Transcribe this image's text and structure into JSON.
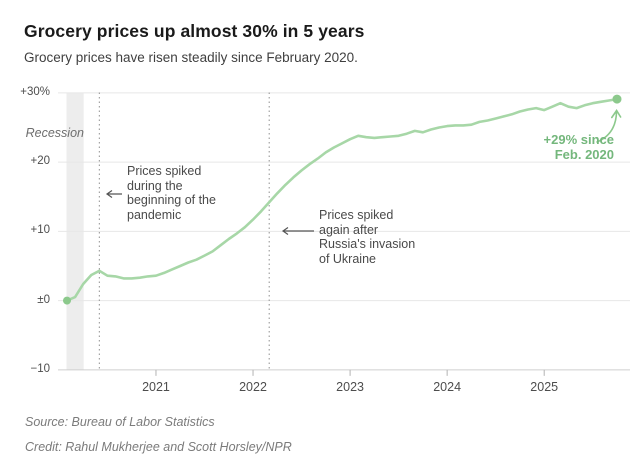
{
  "header": {
    "title": "Grocery prices up almost 30% in 5 years",
    "subtitle": "Grocery prices have risen steadily since February 2020."
  },
  "chart_data": {
    "type": "line",
    "series_name": "Grocery prices, percent change since Feb. 2020",
    "x_start": "Feb 2020",
    "x_end": "Oct 2025",
    "x_unit": "month",
    "values": [
      0,
      0.5,
      2.4,
      3.7,
      4.3,
      3.6,
      3.5,
      3.2,
      3.2,
      3.3,
      3.5,
      3.6,
      4.0,
      4.5,
      5.0,
      5.5,
      5.9,
      6.5,
      7.1,
      8.0,
      8.9,
      9.7,
      10.6,
      11.7,
      12.9,
      14.2,
      15.5,
      16.7,
      17.8,
      18.8,
      19.7,
      20.5,
      21.4,
      22.1,
      22.7,
      23.3,
      23.8,
      23.6,
      23.5,
      23.6,
      23.7,
      23.8,
      24.1,
      24.5,
      24.3,
      24.7,
      25.0,
      25.2,
      25.3,
      25.3,
      25.4,
      25.8,
      26.0,
      26.3,
      26.6,
      26.9,
      27.3,
      27.6,
      27.8,
      27.5,
      28.0,
      28.5,
      28.0,
      27.8,
      28.2,
      28.5,
      28.7,
      28.9,
      29.1
    ],
    "ylim": [
      -10,
      30
    ],
    "grid": true,
    "legend": false,
    "yticks": [
      {
        "value": 30,
        "label": "+30%"
      },
      {
        "value": 20,
        "label": "+20"
      },
      {
        "value": 10,
        "label": "+10"
      },
      {
        "value": 0,
        "label": "±0"
      },
      {
        "value": -10,
        "label": "−10"
      }
    ],
    "xticks": [
      {
        "month_index": 11,
        "label": "2021"
      },
      {
        "month_index": 23,
        "label": "2022"
      },
      {
        "month_index": 35,
        "label": "2023"
      },
      {
        "month_index": 47,
        "label": "2024"
      },
      {
        "month_index": 59,
        "label": "2025"
      }
    ],
    "recession_band": {
      "from_month": 0,
      "to_month": 2,
      "label": "Recession"
    },
    "event_rules": [
      {
        "id": "pandemic-spike",
        "month_index": 4
      },
      {
        "id": "ukraine-invasion",
        "month_index": 25
      }
    ],
    "annotations": {
      "pandemic": {
        "lines": [
          "Prices spiked",
          "during the",
          "beginning of the",
          "pandemic"
        ]
      },
      "ukraine": {
        "lines": [
          "Prices spiked",
          "again after",
          "Russia's invasion",
          "of Ukraine"
        ]
      },
      "latest": {
        "lines": [
          "+29% since",
          "Feb. 2020"
        ]
      }
    },
    "colors": {
      "line": "#a7d7a7",
      "dot": "#8cc98c",
      "accent_text": "#74b77c",
      "band": "#ededed",
      "grid": "#e7e7e7",
      "axis": "#cfcfcf",
      "tick": "#b3b3b3",
      "rule": "#9a9a9a",
      "annotation": "#555555"
    }
  },
  "footer": {
    "source": "Source: Bureau of Labor Statistics",
    "credit": "Credit: Rahul Mukherjee and Scott Horsley/NPR"
  }
}
